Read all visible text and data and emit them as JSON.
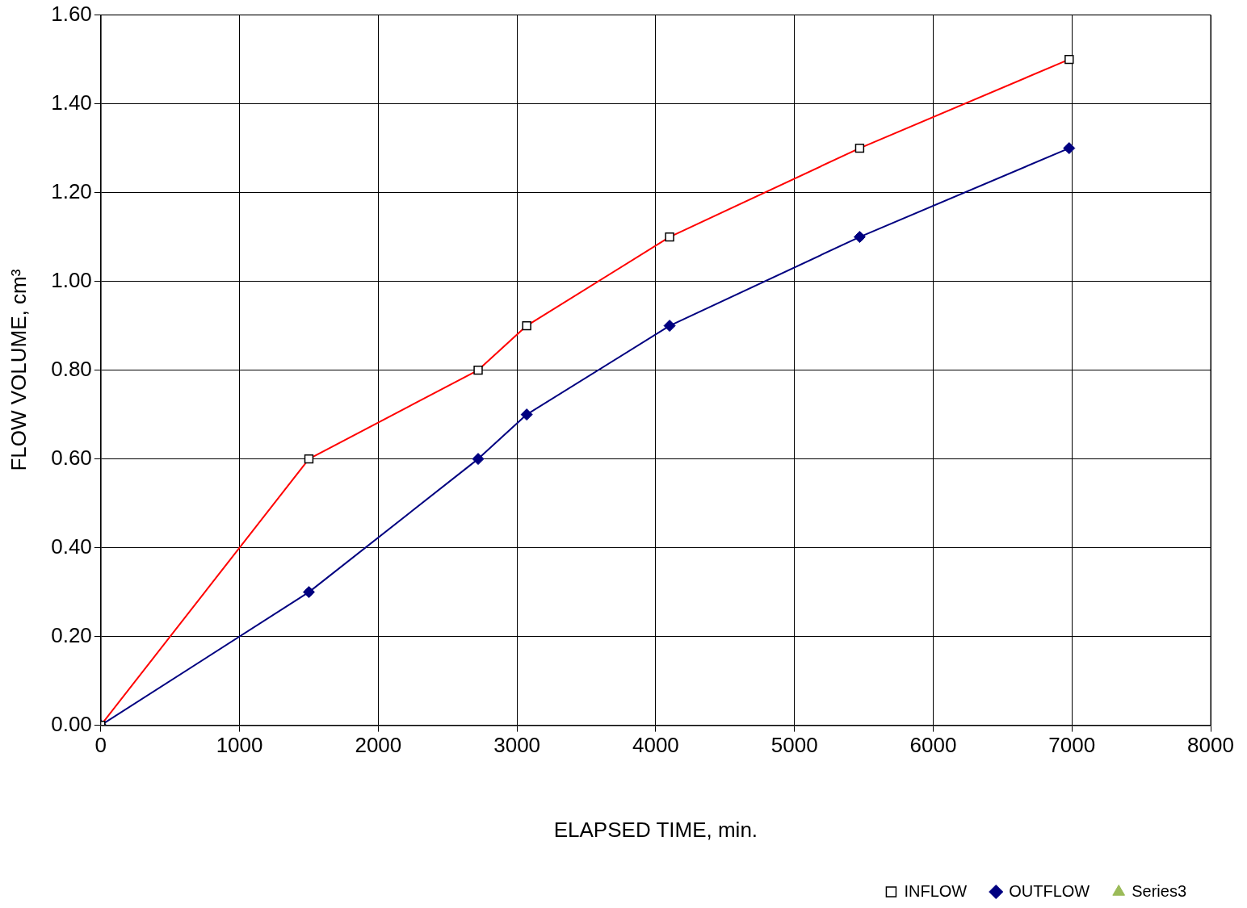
{
  "chart_data": {
    "type": "line",
    "xlabel": "ELAPSED TIME, min.",
    "ylabel": "FLOW VOLUME, cm³",
    "xlim": [
      0,
      8000
    ],
    "xticks": [
      0,
      1000,
      2000,
      3000,
      4000,
      5000,
      6000,
      7000,
      8000
    ],
    "ylim": [
      0,
      1.6
    ],
    "yticks": [
      {
        "value": 0,
        "label": "0.00"
      },
      {
        "value": 0.2,
        "label": "0.20"
      },
      {
        "value": 0.4,
        "label": "0.40"
      },
      {
        "value": 0.6,
        "label": "0.60"
      },
      {
        "value": 0.8,
        "label": "0.80"
      },
      {
        "value": 1.0,
        "label": "1.00"
      },
      {
        "value": 1.2,
        "label": "1.20"
      },
      {
        "value": 1.4,
        "label": "1.40"
      },
      {
        "value": 1.6,
        "label": "1.60"
      }
    ],
    "grid": true,
    "legend": "bottom right",
    "series": [
      {
        "name": "INFLOW",
        "color": "#ff0000",
        "marker": "square",
        "x": [
          0,
          1500,
          2720,
          3070,
          4100,
          5470,
          6980
        ],
        "values": [
          0,
          0.6,
          0.8,
          0.9,
          1.1,
          1.3,
          1.5
        ]
      },
      {
        "name": "OUTFLOW",
        "color": "#000080",
        "marker": "diamond",
        "x": [
          0,
          1500,
          2720,
          3070,
          4100,
          5470,
          6980
        ],
        "values": [
          0,
          0.3,
          0.6,
          0.7,
          0.9,
          1.1,
          1.3
        ]
      },
      {
        "name": "Series3",
        "color": "#9bbb59",
        "marker": "triangle",
        "x": [
          0
        ],
        "values": [
          0
        ]
      }
    ]
  }
}
